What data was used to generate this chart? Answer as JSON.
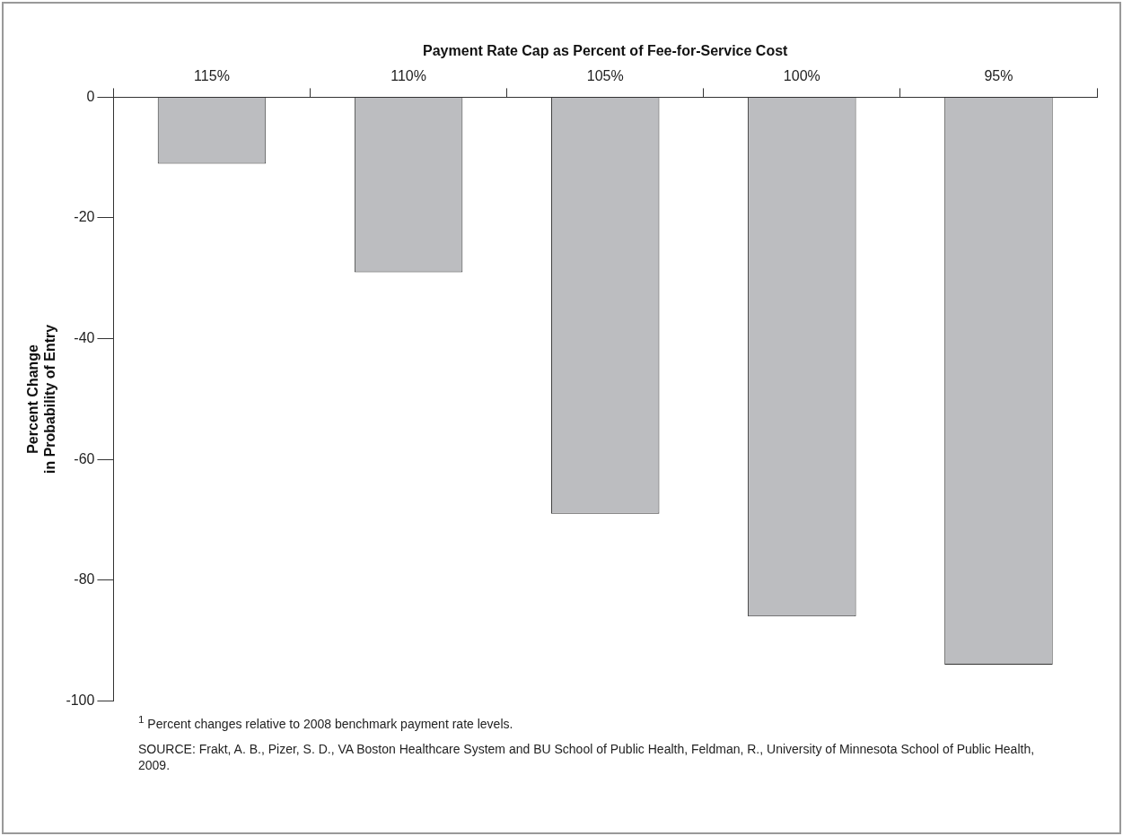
{
  "chart_data": {
    "type": "bar",
    "xlabel": "Payment Rate Cap as Percent of Fee-for-Service Cost",
    "ylabel": "Percent Change\nin Probability of Entry",
    "categories": [
      "115%",
      "110%",
      "105%",
      "100%",
      "95%"
    ],
    "values": [
      -11,
      -29,
      -69,
      -86,
      -94
    ],
    "color": "#bcbdc0",
    "ylim": [
      -100,
      0
    ],
    "yticks": [
      0,
      -20,
      -40,
      -60,
      -80,
      -100
    ],
    "grid": false,
    "legend": false,
    "annotations": [
      "$^{1}$ Percent changes relative to 2008 benchmark payment rate levels.",
      "SOURCE: Frakt, A. B., Pizer, S. D., VA Boston Healthcare System and BU School of Public Health, Feldman, R.,  University of Minnesota School of Public Health, 2009."
    ]
  }
}
